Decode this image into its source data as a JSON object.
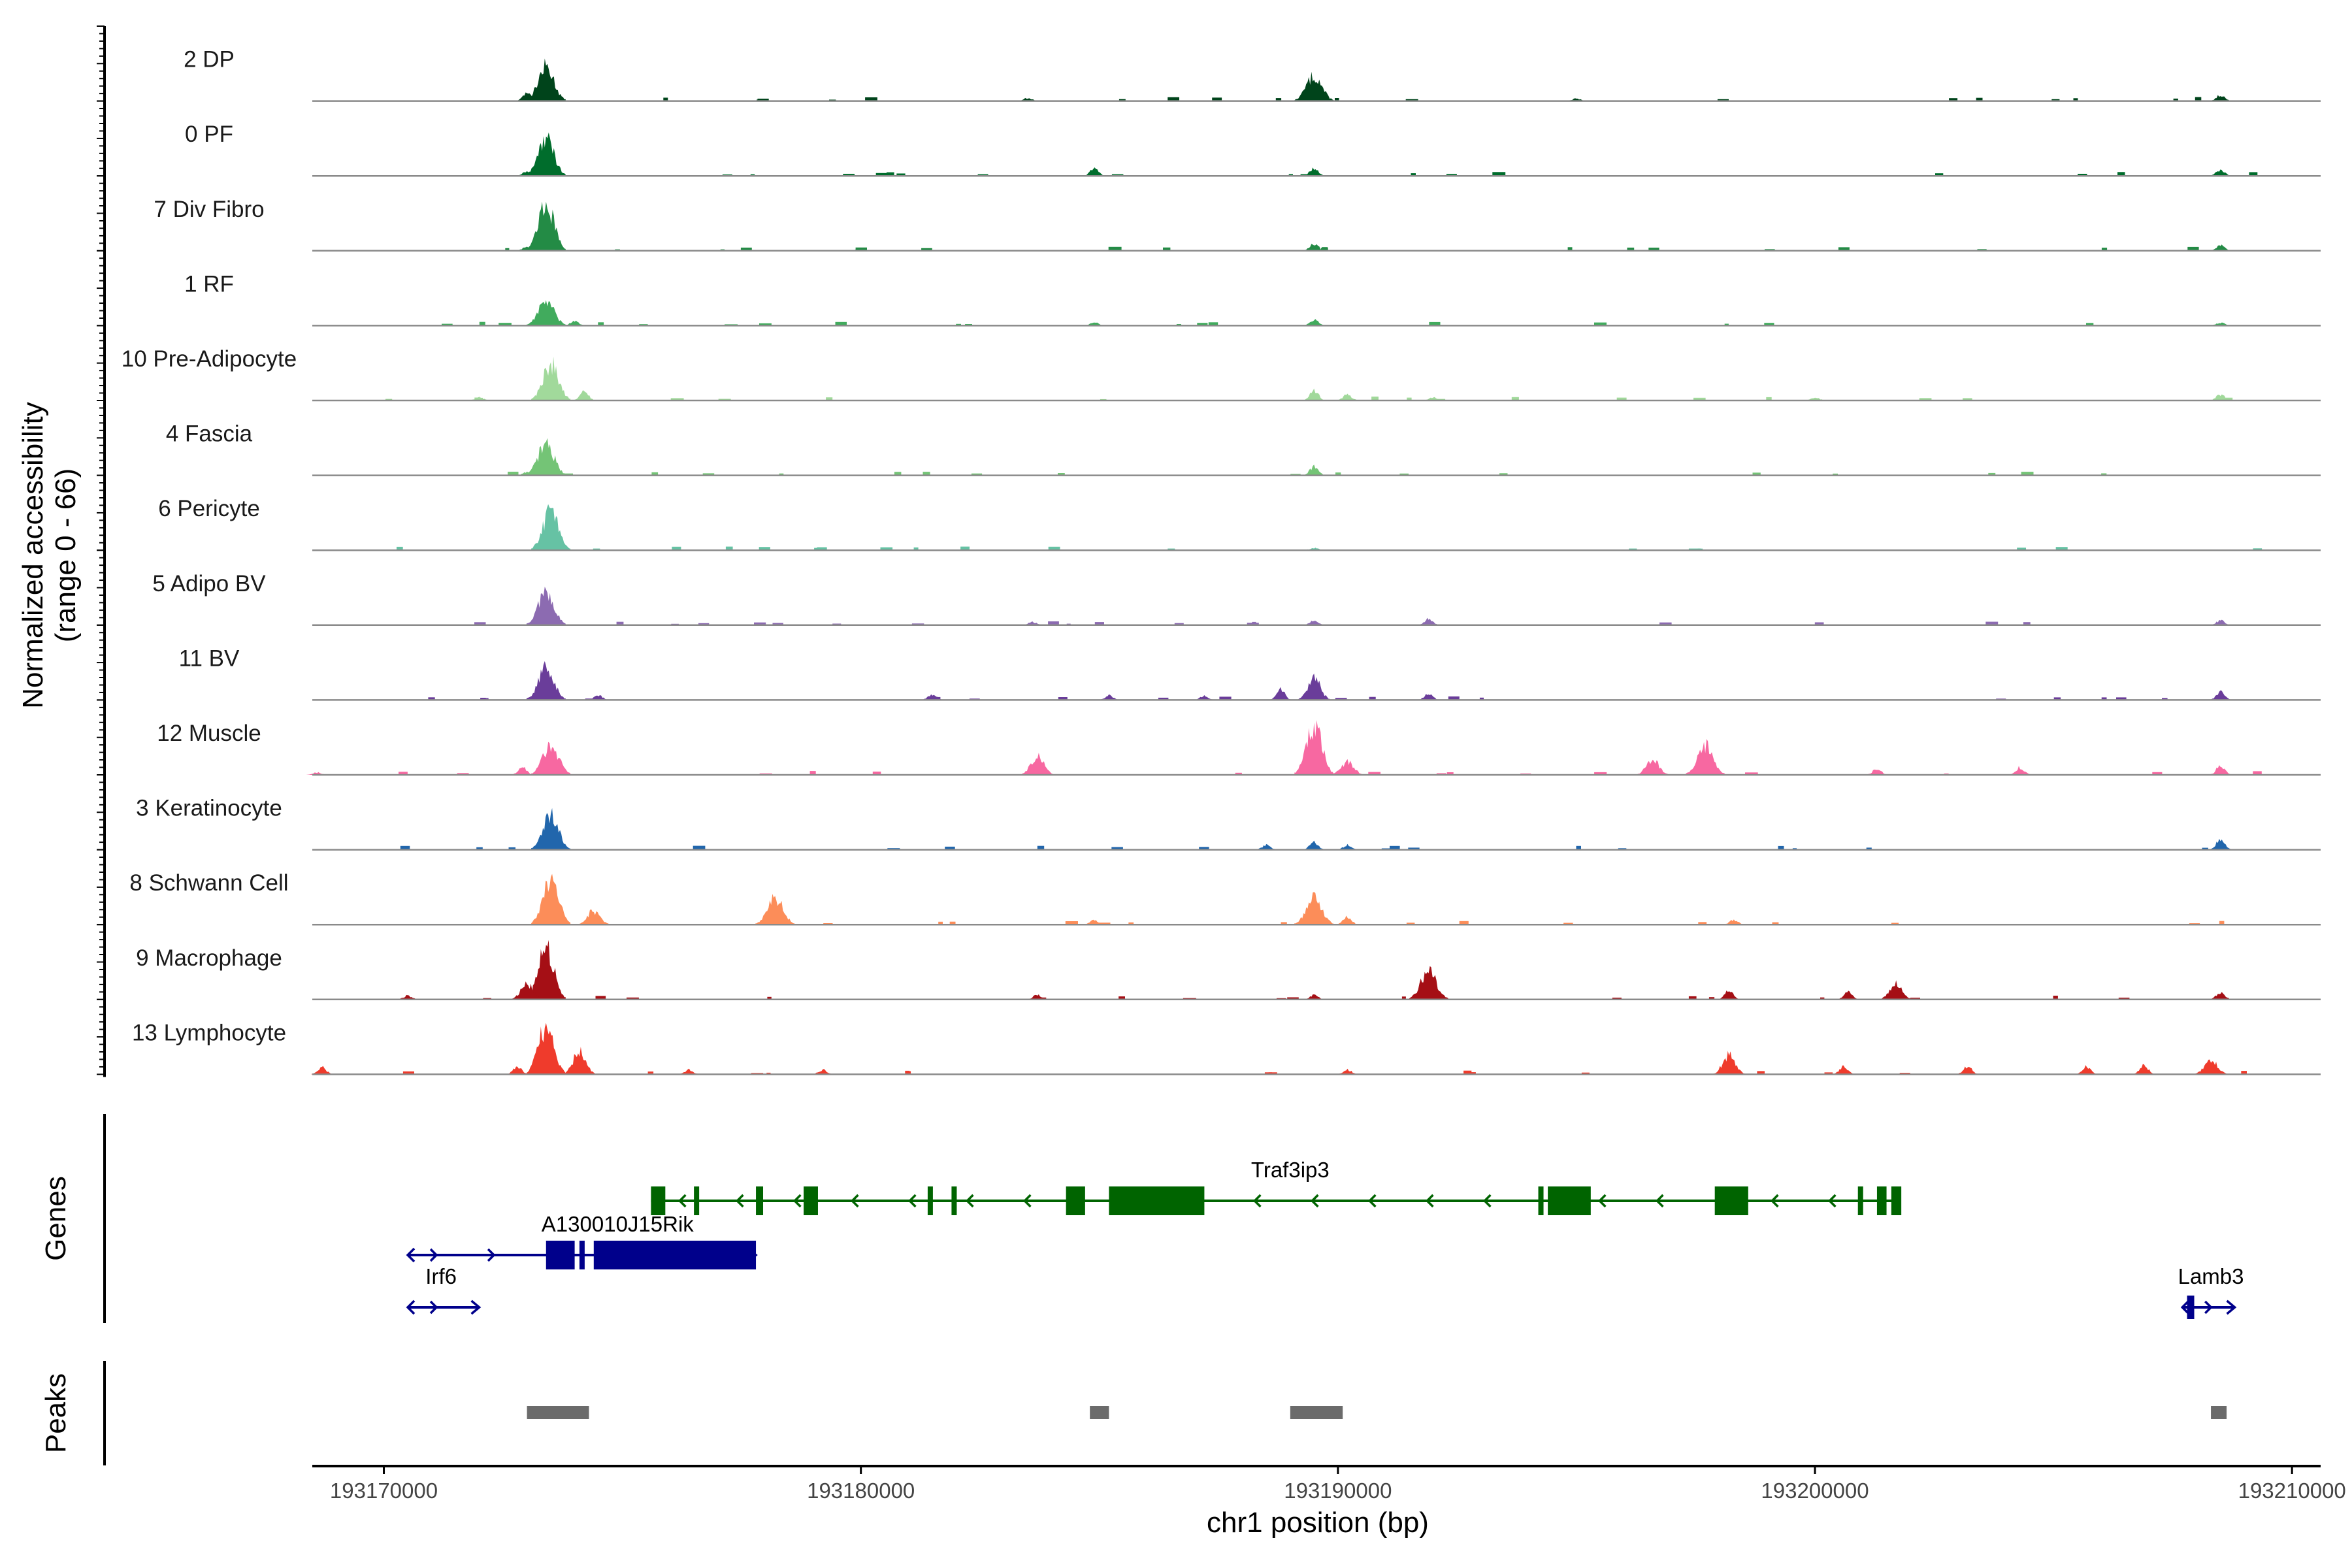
{
  "chart_data": {
    "type": "area",
    "x_range": [
      193168500,
      193210600
    ],
    "xlabel": "chr1 position (bp)",
    "x_ticks": [
      193170000,
      193180000,
      193190000,
      193200000,
      193210000
    ],
    "x_tick_labels": [
      "193170000",
      "193180000",
      "193190000",
      "193200000",
      "193210000"
    ],
    "ylabel": [
      "Normalized accessibility",
      "(range 0 - 66)"
    ],
    "ylim": [
      0,
      66
    ],
    "panel_titles": {
      "genes": "Genes",
      "peaks": "Peaks"
    },
    "tracks": [
      {
        "name": "2 DP",
        "color": "#00441b",
        "peaks": [
          [
            193173400,
            45
          ],
          [
            193189500,
            33
          ],
          [
            193173000,
            10
          ],
          [
            193208500,
            8
          ],
          [
            193183500,
            4
          ],
          [
            193195000,
            3
          ]
        ]
      },
      {
        "name": "0 PF",
        "color": "#006d2c",
        "peaks": [
          [
            193173400,
            50
          ],
          [
            193184900,
            10
          ],
          [
            193189500,
            10
          ],
          [
            193208500,
            8
          ],
          [
            193173000,
            6
          ]
        ]
      },
      {
        "name": "7 Div Fibro",
        "color": "#238b45",
        "peaks": [
          [
            193173400,
            62
          ],
          [
            193189500,
            10
          ],
          [
            193208500,
            7
          ],
          [
            193173000,
            6
          ],
          [
            193180000,
            3
          ]
        ]
      },
      {
        "name": "1 RF",
        "color": "#41ab5d",
        "peaks": [
          [
            193173400,
            32
          ],
          [
            193189500,
            8
          ],
          [
            193184900,
            4
          ],
          [
            193208500,
            4
          ],
          [
            193174000,
            6
          ]
        ]
      },
      {
        "name": "10 Pre-Adipocyte",
        "color": "#a1d99b",
        "peaks": [
          [
            193173500,
            48
          ],
          [
            193174200,
            12
          ],
          [
            193189500,
            14
          ],
          [
            193190200,
            8
          ],
          [
            193208500,
            8
          ],
          [
            193172000,
            4
          ],
          [
            193192000,
            4
          ],
          [
            193200000,
            4
          ]
        ]
      },
      {
        "name": "4 Fascia",
        "color": "#74c476",
        "peaks": [
          [
            193173400,
            42
          ],
          [
            193189500,
            12
          ],
          [
            193173000,
            4
          ]
        ]
      },
      {
        "name": "6 Pericyte",
        "color": "#66c2a4",
        "peaks": [
          [
            193173500,
            52
          ],
          [
            193189500,
            3
          ]
        ]
      },
      {
        "name": "5 Adipo BV",
        "color": "#8c6bb1",
        "peaks": [
          [
            193173400,
            44
          ],
          [
            193189500,
            6
          ],
          [
            193191900,
            8
          ],
          [
            193183600,
            4
          ],
          [
            193208500,
            6
          ]
        ]
      },
      {
        "name": "11 BV",
        "color": "#6a3d9a",
        "peaks": [
          [
            193173400,
            42
          ],
          [
            193189500,
            30
          ],
          [
            193188800,
            14
          ],
          [
            193181500,
            8
          ],
          [
            193191900,
            8
          ],
          [
            193208500,
            10
          ],
          [
            193174500,
            6
          ],
          [
            193185200,
            6
          ],
          [
            193187200,
            5
          ]
        ]
      },
      {
        "name": "12 Muscle",
        "color": "#f768a1",
        "peaks": [
          [
            193189500,
            64
          ],
          [
            193173500,
            40
          ],
          [
            193183700,
            26
          ],
          [
            193197700,
            38
          ],
          [
            193196600,
            20
          ],
          [
            193208500,
            12
          ],
          [
            193190200,
            18
          ],
          [
            193201300,
            8
          ],
          [
            193204300,
            10
          ],
          [
            193172900,
            10
          ],
          [
            193168600,
            3
          ]
        ]
      },
      {
        "name": "3 Keratinocyte",
        "color": "#2166ac",
        "peaks": [
          [
            193173500,
            44
          ],
          [
            193208500,
            14
          ],
          [
            193189500,
            10
          ],
          [
            193188500,
            6
          ],
          [
            193190200,
            6
          ]
        ]
      },
      {
        "name": "8 Schwann Cell",
        "color": "#fc8d59",
        "peaks": [
          [
            193173500,
            58
          ],
          [
            193178200,
            36
          ],
          [
            193189500,
            34
          ],
          [
            193174400,
            18
          ],
          [
            193190200,
            10
          ],
          [
            193184900,
            6
          ],
          [
            193198300,
            6
          ]
        ]
      },
      {
        "name": "9 Macrophage",
        "color": "#a50f15",
        "peaks": [
          [
            193173400,
            66
          ],
          [
            193191900,
            38
          ],
          [
            193201700,
            20
          ],
          [
            193198200,
            12
          ],
          [
            193173000,
            20
          ],
          [
            193183700,
            6
          ],
          [
            193200700,
            10
          ],
          [
            193208500,
            10
          ],
          [
            193189500,
            6
          ],
          [
            193170500,
            5
          ]
        ]
      },
      {
        "name": "13 Lymphocyte",
        "color": "#ef3b2c",
        "peaks": [
          [
            193173400,
            62
          ],
          [
            193174100,
            30
          ],
          [
            193198200,
            26
          ],
          [
            193208300,
            20
          ],
          [
            193176400,
            6
          ],
          [
            193172800,
            10
          ],
          [
            193168700,
            10
          ],
          [
            193179200,
            6
          ],
          [
            193200600,
            10
          ],
          [
            193203200,
            10
          ],
          [
            193205700,
            10
          ],
          [
            193206900,
            12
          ],
          [
            193190200,
            6
          ]
        ]
      }
    ],
    "genes": [
      {
        "name": "Traf3ip3",
        "strand": "-",
        "start": 193175600,
        "end": 193201800,
        "color": "#006400",
        "row": 0,
        "label_pos": 193189000,
        "exons": [
          [
            193175600,
            193175900
          ],
          [
            193176500,
            193176600
          ],
          [
            193177800,
            193177950
          ],
          [
            193178800,
            193179100
          ],
          [
            193181400,
            193181500
          ],
          [
            193181900,
            193182000
          ],
          [
            193184300,
            193184700
          ],
          [
            193185200,
            193187200
          ],
          [
            193194200,
            193194300
          ],
          [
            193194400,
            193195300
          ],
          [
            193197900,
            193198600
          ],
          [
            193200900,
            193201000
          ],
          [
            193201300,
            193201500
          ],
          [
            193201600,
            193201650
          ],
          [
            193201700,
            193201800
          ]
        ]
      },
      {
        "name": "A130010J15Rik",
        "strand": "+",
        "start": 193170500,
        "end": 193177800,
        "color": "#00008b",
        "row": 1,
        "label_pos": 193174900,
        "exons": [
          [
            193173400,
            193174000
          ],
          [
            193174100,
            193174200
          ],
          [
            193174400,
            193177800
          ]
        ]
      },
      {
        "name": "Irf6",
        "strand": "+",
        "start": 193170500,
        "end": 193172000,
        "color": "#00008b",
        "row": 2,
        "label_pos": 193171200,
        "exons": []
      },
      {
        "name": "Lamb3",
        "strand": "+",
        "start": 193207700,
        "end": 193208800,
        "color": "#00008b",
        "row": 2,
        "label_pos": 193208300,
        "exons": [
          [
            193207800,
            193207950
          ]
        ]
      }
    ],
    "peak_regions": [
      [
        193173000,
        193174300
      ],
      [
        193184800,
        193185200
      ],
      [
        193189000,
        193190100
      ],
      [
        193208300,
        193208600
      ]
    ],
    "grid": false,
    "legend": "none"
  }
}
